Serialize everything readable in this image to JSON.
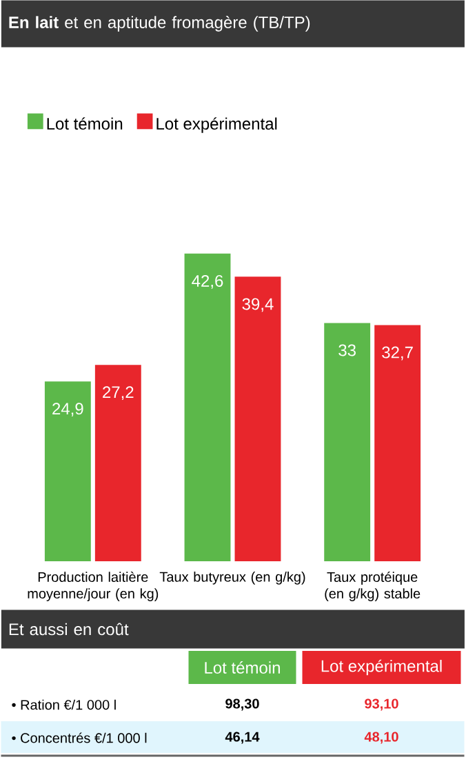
{
  "chart_data": [
    {
      "type": "bar",
      "title": "**En lait** et en aptitude fromagère (TB/TP)",
      "categories": [
        "Production laitière moyenne/jour (en kg)",
        "Taux butyreux (en g/kg)",
        "Taux protéique (en g/kg) stable"
      ],
      "series": [
        {
          "name": "Lot témoin",
          "color": "#5cb84a",
          "values": [
            24.9,
            42.6,
            33
          ],
          "value_labels": [
            "24,9",
            "42,6",
            "33"
          ]
        },
        {
          "name": "Lot expérimental",
          "color": "#e8262c",
          "values": [
            27.2,
            39.4,
            32.7
          ],
          "value_labels": [
            "27,2",
            "39,4",
            "32,7"
          ]
        }
      ],
      "legend": "top left",
      "tick_labels": "x"
    },
    {
      "type": "other",
      "title": "Et aussi en coût",
      "categories": [
        "Lot témoin",
        "Lot expérimental"
      ],
      "colors": [
        "#5cb84a",
        "#e8262c"
      ],
      "y_categories": [
        "• Ration €/1 000 l",
        "• Concentrés €/1 000 l"
      ],
      "cell_labels": [
        [
          "98,30",
          "93,10"
        ],
        [
          "46,14",
          "48,10"
        ]
      ]
    }
  ]
}
